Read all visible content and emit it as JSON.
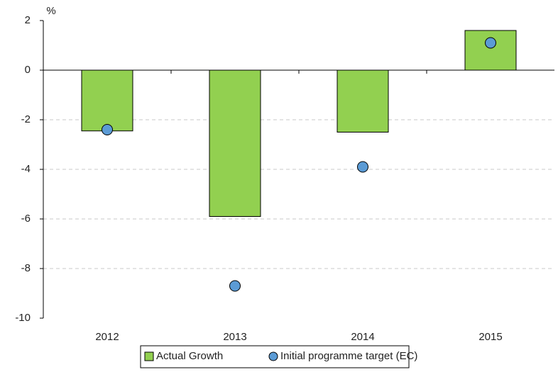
{
  "chart_data": {
    "type": "bar",
    "y_label": "%",
    "categories": [
      "2012",
      "2013",
      "2014",
      "2015"
    ],
    "series": [
      {
        "name": "Actual Growth",
        "type": "bar",
        "color": "#92d050",
        "values": [
          -2.45,
          -5.9,
          -2.5,
          1.6
        ]
      },
      {
        "name": "Initial programme target (EC)",
        "type": "scatter",
        "color": "#5b9bd5",
        "values": [
          -2.4,
          -8.7,
          -3.9,
          1.1
        ]
      }
    ],
    "ylim": [
      -10,
      2
    ],
    "yticks": [
      -10,
      -8,
      -6,
      -4,
      -2,
      0,
      2
    ],
    "grid": true,
    "legend": "bottom"
  }
}
